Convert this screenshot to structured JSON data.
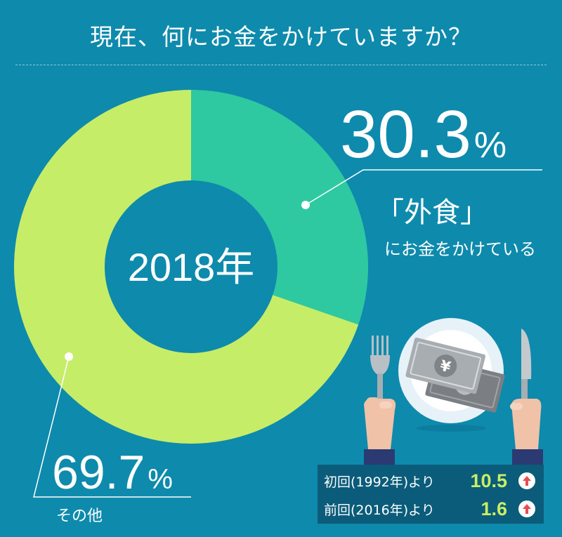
{
  "title": "現在、何にお金をかけていますか？",
  "center_label": "2018年",
  "chart_data": {
    "type": "pie",
    "categories": [
      "「外食」にお金をかけている",
      "その他"
    ],
    "values": [
      30.3,
      69.7
    ],
    "colors": [
      "#2ec9a1",
      "#c5ed68"
    ],
    "unit": "%"
  },
  "callouts": {
    "eating_out": {
      "value": "30.3",
      "unit": "%",
      "label": "「外食」",
      "sublabel": "にお金をかけている"
    },
    "other": {
      "value": "69.7",
      "unit": "%",
      "label": "その他"
    }
  },
  "comparisons": [
    {
      "label": "初回(1992年)より",
      "value": "10.5",
      "trend": "up"
    },
    {
      "label": "前回(2016年)より",
      "value": "1.6",
      "trend": "up"
    }
  ],
  "illustration": {
    "icons": [
      "fork-icon",
      "plate-icon",
      "yen-banknote-icon",
      "knife-icon",
      "hand-icon"
    ],
    "currency_symbol": "¥"
  },
  "colors": {
    "background": "#0e8aad",
    "accent_green": "#c8ee64",
    "arrow_red": "#e94b55"
  }
}
